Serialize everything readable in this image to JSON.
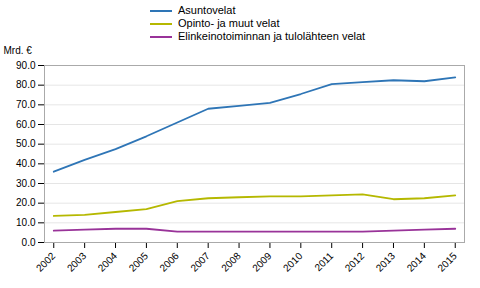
{
  "chart_data": {
    "type": "line",
    "ylabel": "Mrd. €",
    "x": [
      2002,
      2003,
      2004,
      2005,
      2006,
      2007,
      2008,
      2009,
      2010,
      2011,
      2012,
      2013,
      2014,
      2015
    ],
    "series": [
      {
        "name": "Asuntovelat",
        "color": "#2E75B6",
        "values": [
          36.0,
          42.0,
          47.5,
          54.0,
          61.0,
          68.0,
          69.5,
          71.0,
          75.5,
          80.5,
          81.5,
          82.5,
          82.0,
          84.0
        ]
      },
      {
        "name": "Opinto- ja muut velat",
        "color": "#B5B800",
        "values": [
          13.5,
          14.0,
          15.5,
          17.0,
          21.0,
          22.5,
          23.0,
          23.5,
          23.5,
          24.0,
          24.5,
          22.0,
          22.5,
          24.0
        ]
      },
      {
        "name": "Elinkeinotoiminnan ja tulolähteen velat",
        "color": "#993399",
        "values": [
          6.0,
          6.5,
          7.0,
          7.0,
          5.5,
          5.5,
          5.5,
          5.5,
          5.5,
          5.5,
          5.5,
          6.0,
          6.5,
          7.0
        ]
      }
    ],
    "xlim": [
      2001.7,
      2015.3
    ],
    "xticks": [
      2002,
      2003,
      2004,
      2005,
      2006,
      2007,
      2008,
      2009,
      2010,
      2011,
      2012,
      2013,
      2014,
      2015
    ],
    "ylim": [
      0.0,
      90.0
    ],
    "yticks": [
      {
        "value": 0.0,
        "label": "0.0"
      },
      {
        "value": 10.0,
        "label": "10.0"
      },
      {
        "value": 20.0,
        "label": "20.0"
      },
      {
        "value": 30.0,
        "label": "30.0"
      },
      {
        "value": 40.0,
        "label": "40.0"
      },
      {
        "value": 50.0,
        "label": "50.0"
      },
      {
        "value": 60.0,
        "label": "60.0"
      },
      {
        "value": 70.0,
        "label": "70.0"
      },
      {
        "value": 80.0,
        "label": "80.0"
      },
      {
        "value": 90.0,
        "label": "90.0"
      }
    ],
    "grid": true,
    "legend": "top"
  }
}
